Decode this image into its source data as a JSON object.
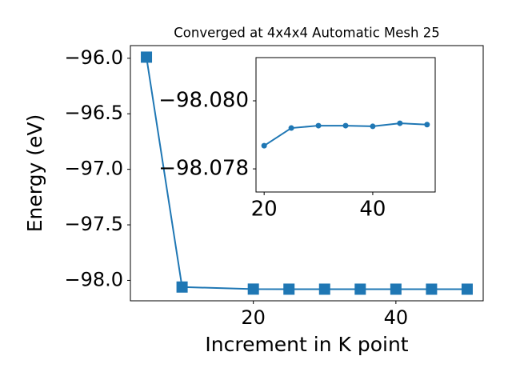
{
  "chart_data": [
    {
      "type": "line",
      "title": "Converged at 4x4x4 Automatic Mesh 25",
      "xlabel": "Increment in K point",
      "ylabel": "Energy (eV)",
      "x": [
        5,
        10,
        20,
        25,
        30,
        35,
        40,
        45,
        50
      ],
      "series": [
        {
          "name": "Energy",
          "color": "#1f77b4",
          "marker": "square",
          "values": [
            -95.99,
            -98.06,
            -98.07868,
            -98.0792,
            -98.07927,
            -98.07927,
            -98.07925,
            -98.07934,
            -98.0793
          ]
        }
      ],
      "xlim": [
        2.75,
        52.25
      ],
      "ylim": [
        -98.184,
        -95.886
      ],
      "xticks": [
        20,
        40
      ],
      "yticks": [
        {
          "value": -98.0,
          "label": "−98.0"
        },
        {
          "value": -97.5,
          "label": "−97.5"
        },
        {
          "value": -97.0,
          "label": "−97.0"
        },
        {
          "value": -96.5,
          "label": "−96.5"
        },
        {
          "value": -96.0,
          "label": "−96.0"
        }
      ]
    },
    {
      "type": "line",
      "x": [
        20,
        25,
        30,
        35,
        40,
        45,
        50
      ],
      "series": [
        {
          "name": "Energy",
          "color": "#1f77b4",
          "marker": "circle",
          "values": [
            -98.07868,
            -98.0792,
            -98.07927,
            -98.07927,
            -98.07925,
            -98.07934,
            -98.0793
          ]
        }
      ],
      "xlim": [
        18.5,
        51.5
      ],
      "ylim": [
        -98.07732,
        -98.08127
      ],
      "xticks": [
        20,
        40
      ],
      "yticks": [
        {
          "value": -98.08,
          "label": "−98.080"
        },
        {
          "value": -98.078,
          "label": "−98.078"
        }
      ]
    }
  ]
}
